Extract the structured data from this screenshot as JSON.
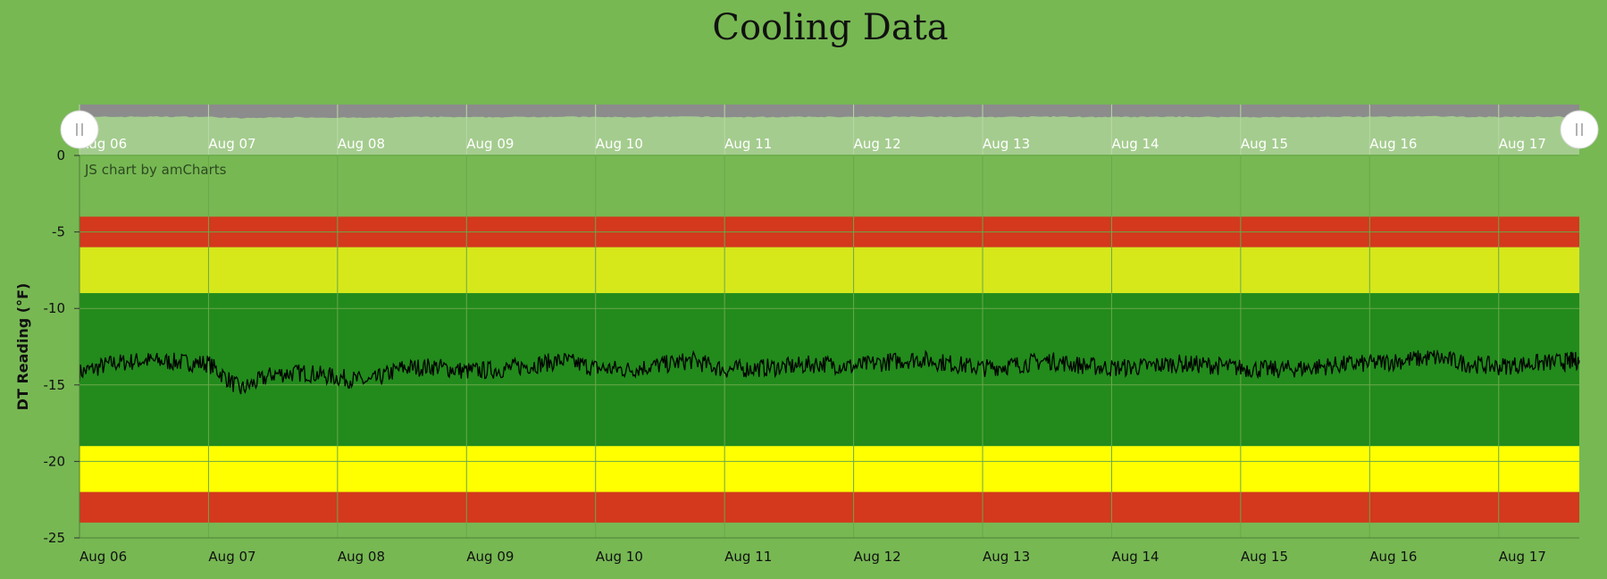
{
  "title": "Cooling Data",
  "credit": "JS chart by amCharts",
  "colors": {
    "background": "#77b853",
    "red": "#d4381d",
    "yellow_light": "#d6e81a",
    "yellow": "#ffff00",
    "green": "#228b1c",
    "line": "#000000",
    "scrollbar_bg": "#a4cc8e",
    "scrollbar_fill": "#8c8c8c",
    "handle": "#ffffff"
  },
  "scrollbar": {
    "labels": [
      "Aug 06",
      "Aug 07",
      "Aug 08",
      "Aug 09",
      "Aug 10",
      "Aug 11",
      "Aug 12",
      "Aug 13",
      "Aug 14",
      "Aug 15",
      "Aug 16",
      "Aug 17"
    ],
    "handle_icon_left": "grip-icon",
    "handle_icon_right": "grip-icon"
  },
  "chart_data": {
    "type": "line",
    "title": "Cooling Data",
    "xlabel": "",
    "ylabel": "DT Reading (°F)",
    "ylim": [
      -25,
      0
    ],
    "yticks": [
      0,
      -5,
      -10,
      -15,
      -20,
      -25
    ],
    "xlim": [
      "2023-08-06",
      "2023-08-17 15:00"
    ],
    "xticks": [
      "Aug 06",
      "Aug 07",
      "Aug 08",
      "Aug 09",
      "Aug 10",
      "Aug 11",
      "Aug 12",
      "Aug 13",
      "Aug 14",
      "Aug 15",
      "Aug 16",
      "Aug 17"
    ],
    "grid": true,
    "bands": [
      {
        "from": -6,
        "to": -4,
        "color": "#d4381d"
      },
      {
        "from": -9,
        "to": -6,
        "color": "#d6e81a"
      },
      {
        "from": -19,
        "to": -9,
        "color": "#228b1c"
      },
      {
        "from": -22,
        "to": -19,
        "color": "#ffff00"
      },
      {
        "from": -24,
        "to": -22,
        "color": "#d4381d"
      }
    ],
    "series": [
      {
        "x": [
          "2023-08-06 00:00",
          "2023-08-06 06:00",
          "2023-08-06 12:00",
          "2023-08-06 18:00",
          "2023-08-07 00:00",
          "2023-08-07 06:00",
          "2023-08-07 12:00",
          "2023-08-07 18:00",
          "2023-08-08 00:00",
          "2023-08-08 06:00",
          "2023-08-08 12:00",
          "2023-08-08 18:00",
          "2023-08-09 00:00",
          "2023-08-09 06:00",
          "2023-08-09 12:00",
          "2023-08-09 18:00",
          "2023-08-10 00:00",
          "2023-08-10 06:00",
          "2023-08-10 12:00",
          "2023-08-10 18:00",
          "2023-08-11 00:00",
          "2023-08-11 06:00",
          "2023-08-11 12:00",
          "2023-08-11 18:00",
          "2023-08-12 00:00",
          "2023-08-12 06:00",
          "2023-08-12 12:00",
          "2023-08-12 18:00",
          "2023-08-13 00:00",
          "2023-08-13 06:00",
          "2023-08-13 12:00",
          "2023-08-13 18:00",
          "2023-08-14 00:00",
          "2023-08-14 06:00",
          "2023-08-14 12:00",
          "2023-08-14 18:00",
          "2023-08-15 00:00",
          "2023-08-15 06:00",
          "2023-08-15 12:00",
          "2023-08-15 18:00",
          "2023-08-16 00:00",
          "2023-08-16 06:00",
          "2023-08-16 12:00",
          "2023-08-16 18:00",
          "2023-08-17 00:00",
          "2023-08-17 06:00",
          "2023-08-17 12:00",
          "2023-08-17 15:00"
        ],
        "values": [
          -14.2,
          -13.6,
          -13.4,
          -13.5,
          -13.6,
          -15.3,
          -14.3,
          -14.2,
          -14.5,
          -14.8,
          -13.9,
          -13.8,
          -14.1,
          -14.0,
          -13.7,
          -13.4,
          -13.9,
          -14.0,
          -13.7,
          -13.4,
          -14.0,
          -13.9,
          -13.8,
          -13.6,
          -13.8,
          -13.5,
          -13.3,
          -13.6,
          -13.9,
          -13.7,
          -13.4,
          -13.7,
          -13.9,
          -13.8,
          -13.6,
          -13.7,
          -13.9,
          -14.0,
          -13.9,
          -13.7,
          -13.6,
          -13.4,
          -13.2,
          -13.6,
          -13.8,
          -13.6,
          -13.5,
          -13.4
        ]
      }
    ]
  }
}
